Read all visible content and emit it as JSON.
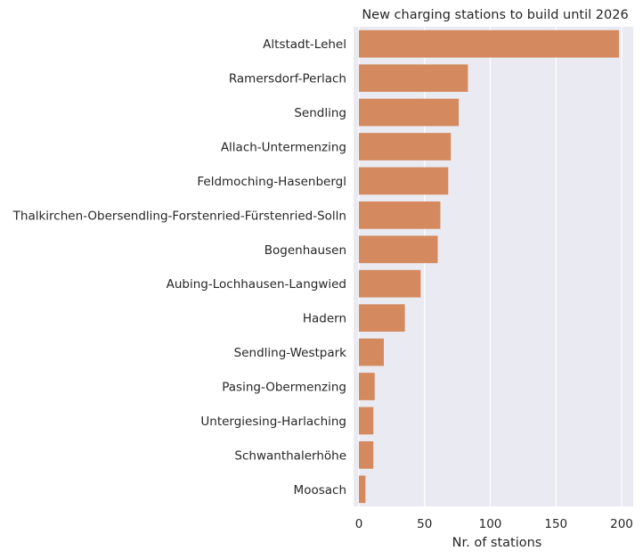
{
  "chart_data": {
    "type": "bar",
    "orientation": "horizontal",
    "title": "New charging stations to build until 2026",
    "xlabel": "Nr. of stations",
    "ylabel": "",
    "xlim": [
      0,
      205
    ],
    "xticks": [
      0,
      50,
      100,
      150,
      200
    ],
    "grid": true,
    "categories": [
      "Altstadt-Lehel",
      "Ramersdorf-Perlach",
      "Sendling",
      "Allach-Untermenzing",
      "Feldmoching-Hasenbergl",
      "Thalkirchen-Obersendling-Forstenried-Fürstenried-Solln",
      "Bogenhausen",
      "Aubing-Lochhausen-Langwied",
      "Hadern",
      "Sendling-Westpark",
      "Pasing-Obermenzing",
      "Untergiesing-Harlaching",
      "Schwanthalerhöhe",
      "Moosach"
    ],
    "values": [
      198,
      83,
      76,
      70,
      68,
      62,
      60,
      47,
      35,
      19,
      12,
      11,
      11,
      5
    ],
    "colors": {
      "bar": "#d48a5e",
      "background": "#eaeaf2",
      "grid": "#ffffff",
      "text": "#262626"
    }
  }
}
